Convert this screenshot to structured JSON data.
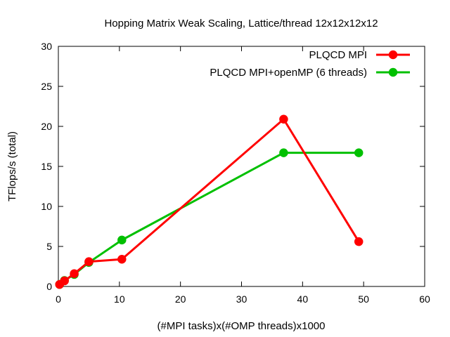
{
  "chart_data": {
    "type": "line",
    "title": "Hopping Matrix Weak Scaling, Lattice/thread 12x12x12x12",
    "xlabel": "(#MPI tasks)x(#OMP threads)x1000",
    "ylabel": "TFlops/s (total)",
    "xlim": [
      0,
      60
    ],
    "ylim": [
      0,
      30
    ],
    "xticks": [
      0,
      10,
      20,
      30,
      40,
      50,
      60
    ],
    "yticks": [
      0,
      5,
      10,
      15,
      20,
      25,
      30
    ],
    "xtick_labels": [
      "0",
      "10",
      "20",
      "30",
      "40",
      "50",
      "60"
    ],
    "ytick_labels": [
      "0",
      "5",
      "10",
      "15",
      "20",
      "25",
      "30"
    ],
    "grid": false,
    "legend_position": "top-right",
    "series": [
      {
        "name": "PLQCD MPI",
        "color": "#ff0000",
        "x": [
          0.2,
          1.0,
          2.6,
          5.0,
          10.4,
          36.9,
          49.2
        ],
        "y": [
          0.25,
          0.7,
          1.6,
          3.1,
          3.4,
          20.9,
          5.6
        ]
      },
      {
        "name": "PLQCD MPI+openMP (6 threads)",
        "color": "#00c000",
        "x": [
          0.2,
          1.0,
          2.6,
          5.0,
          10.4,
          36.9,
          49.2
        ],
        "y": [
          0.25,
          0.75,
          1.5,
          3.0,
          5.8,
          16.7,
          16.7
        ]
      }
    ]
  }
}
